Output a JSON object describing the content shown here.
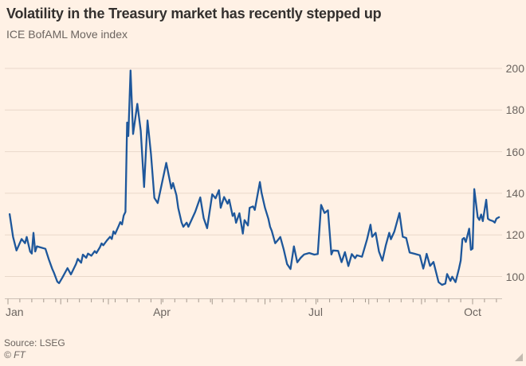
{
  "page": {
    "background": "#fff1e5"
  },
  "header": {
    "title": "Volatility in the Treasury market has recently stepped up",
    "subtitle": "ICE BofAML Move index"
  },
  "footer": {
    "source": "Source: LSEG",
    "copyright": "© FT"
  },
  "colors": {
    "background": "#fff1e5",
    "line": "#1e579b",
    "grid": "#e9d8ca",
    "axis": "#cdc0b5",
    "tick": "#a59a8f",
    "title_text": "#33302e",
    "label_text": "#6b645f"
  },
  "chart_data": {
    "type": "line",
    "title": "Volatility in the Treasury market has recently stepped up",
    "subtitle": "ICE BofAML Move index",
    "legend": "none",
    "grid": "horizontal-on",
    "x": {
      "unit": "day of year (Jan 1 = 0)",
      "range": [
        0,
        289
      ],
      "minor_tick_interval_days": 7,
      "month_ticks_days": [
        0,
        31,
        59,
        90,
        120,
        151,
        181,
        212,
        243,
        273
      ],
      "labels": [
        {
          "text": "Jan",
          "day": 0
        },
        {
          "text": "Apr",
          "day": 90
        },
        {
          "text": "Jul",
          "day": 181
        },
        {
          "text": "Oct",
          "day": 273
        }
      ]
    },
    "y": {
      "side": "right",
      "ticks": [
        200,
        180,
        160,
        140,
        120,
        100
      ],
      "range": [
        90,
        205
      ]
    },
    "series": [
      {
        "name": "ICE BofAML Move index",
        "color": "#1e579b",
        "points": [
          [
            1,
            130
          ],
          [
            3,
            119
          ],
          [
            5,
            112.5
          ],
          [
            8,
            118
          ],
          [
            10,
            116
          ],
          [
            11,
            119
          ],
          [
            13,
            112
          ],
          [
            14,
            111
          ],
          [
            15,
            121
          ],
          [
            16,
            112
          ],
          [
            17,
            114.5
          ],
          [
            19,
            114
          ],
          [
            22,
            113.3
          ],
          [
            24,
            108.2
          ],
          [
            26,
            103.7
          ],
          [
            27,
            101.8
          ],
          [
            29,
            97.5
          ],
          [
            30,
            96.8
          ],
          [
            32,
            99.5
          ],
          [
            35,
            104
          ],
          [
            37,
            101
          ],
          [
            40,
            106
          ],
          [
            41,
            108.5
          ],
          [
            43,
            106.6
          ],
          [
            44,
            110.5
          ],
          [
            46,
            109
          ],
          [
            47,
            111
          ],
          [
            49,
            110
          ],
          [
            51,
            112.2
          ],
          [
            52,
            111.3
          ],
          [
            54,
            114
          ],
          [
            55,
            115.9
          ],
          [
            56,
            115
          ],
          [
            58,
            117.2
          ],
          [
            60,
            119.1
          ],
          [
            61,
            118
          ],
          [
            62,
            121.7
          ],
          [
            63,
            120.5
          ],
          [
            65,
            124.2
          ],
          [
            66,
            126.1
          ],
          [
            67,
            125
          ],
          [
            68,
            129.3
          ],
          [
            69,
            131
          ],
          [
            70,
            174
          ],
          [
            70.7,
            167.5
          ],
          [
            72,
            199
          ],
          [
            73.5,
            168.5
          ],
          [
            76,
            183
          ],
          [
            78,
            170
          ],
          [
            80,
            143
          ],
          [
            82,
            175
          ],
          [
            84,
            159
          ],
          [
            86,
            137.8
          ],
          [
            88,
            135.3
          ],
          [
            93,
            154.6
          ],
          [
            96,
            142.3
          ],
          [
            97,
            144.9
          ],
          [
            99,
            139
          ],
          [
            100,
            133
          ],
          [
            102,
            126
          ],
          [
            103,
            123.9
          ],
          [
            105,
            125.9
          ],
          [
            106,
            123.9
          ],
          [
            110,
            131
          ],
          [
            113,
            138
          ],
          [
            115,
            128
          ],
          [
            117,
            123.2
          ],
          [
            120,
            139.5
          ],
          [
            122,
            137.6
          ],
          [
            124,
            141.5
          ],
          [
            125,
            133
          ],
          [
            127,
            138.2
          ],
          [
            129,
            135
          ],
          [
            130,
            136.9
          ],
          [
            132,
            129.1
          ],
          [
            133,
            130.4
          ],
          [
            134,
            125.8
          ],
          [
            136,
            130.4
          ],
          [
            138,
            120.6
          ],
          [
            139,
            127.1
          ],
          [
            141,
            124.5
          ],
          [
            142,
            133
          ],
          [
            144,
            133.7
          ],
          [
            145,
            132
          ],
          [
            148,
            145.4
          ],
          [
            149,
            140.2
          ],
          [
            151,
            133
          ],
          [
            153,
            127.8
          ],
          [
            154,
            123.9
          ],
          [
            155,
            121.9
          ],
          [
            157,
            116
          ],
          [
            159,
            117.9
          ],
          [
            160,
            119
          ],
          [
            162,
            113
          ],
          [
            164,
            106
          ],
          [
            166,
            103.6
          ],
          [
            168,
            114.5
          ],
          [
            170,
            106.8
          ],
          [
            172,
            109
          ],
          [
            174,
            110.6
          ],
          [
            177,
            111.3
          ],
          [
            180,
            110.5
          ],
          [
            182,
            110.8
          ],
          [
            184,
            134.4
          ],
          [
            186,
            130.5
          ],
          [
            188,
            131.8
          ],
          [
            190,
            110.6
          ],
          [
            191,
            112.5
          ],
          [
            194,
            112.3
          ],
          [
            196,
            106.9
          ],
          [
            198,
            111.7
          ],
          [
            200,
            105
          ],
          [
            202,
            110.8
          ],
          [
            204,
            108.8
          ],
          [
            205,
            110.2
          ],
          [
            208,
            109.5
          ],
          [
            211,
            117.9
          ],
          [
            213,
            124.9
          ],
          [
            214,
            119.1
          ],
          [
            216,
            121
          ],
          [
            218,
            112
          ],
          [
            220,
            107.6
          ],
          [
            222,
            115
          ],
          [
            224,
            121
          ],
          [
            225,
            117.9
          ],
          [
            227,
            121.6
          ],
          [
            230,
            130.5
          ],
          [
            232,
            119.1
          ],
          [
            234,
            118.5
          ],
          [
            236,
            111.5
          ],
          [
            239,
            110.9
          ],
          [
            242,
            110.2
          ],
          [
            244,
            103.8
          ],
          [
            245,
            107
          ],
          [
            246,
            110.9
          ],
          [
            248,
            105.1
          ],
          [
            250,
            107
          ],
          [
            253,
            97.3
          ],
          [
            255,
            96
          ],
          [
            257,
            96.6
          ],
          [
            258,
            101.2
          ],
          [
            260,
            97.9
          ],
          [
            261,
            99.9
          ],
          [
            263,
            97.3
          ],
          [
            265,
            103.8
          ],
          [
            266,
            107.7
          ],
          [
            267,
            117.9
          ],
          [
            268,
            118.5
          ],
          [
            269,
            116.6
          ],
          [
            271,
            123
          ],
          [
            272,
            112.8
          ],
          [
            273,
            113.4
          ],
          [
            274,
            142
          ],
          [
            276,
            128.5
          ],
          [
            277,
            127.2
          ],
          [
            278,
            129.8
          ],
          [
            279,
            126.6
          ],
          [
            281,
            136.9
          ],
          [
            282,
            127.8
          ],
          [
            283,
            127.2
          ],
          [
            285,
            126.6
          ],
          [
            286,
            125.9
          ],
          [
            287,
            127.8
          ],
          [
            288.5,
            128.5
          ]
        ]
      }
    ]
  }
}
